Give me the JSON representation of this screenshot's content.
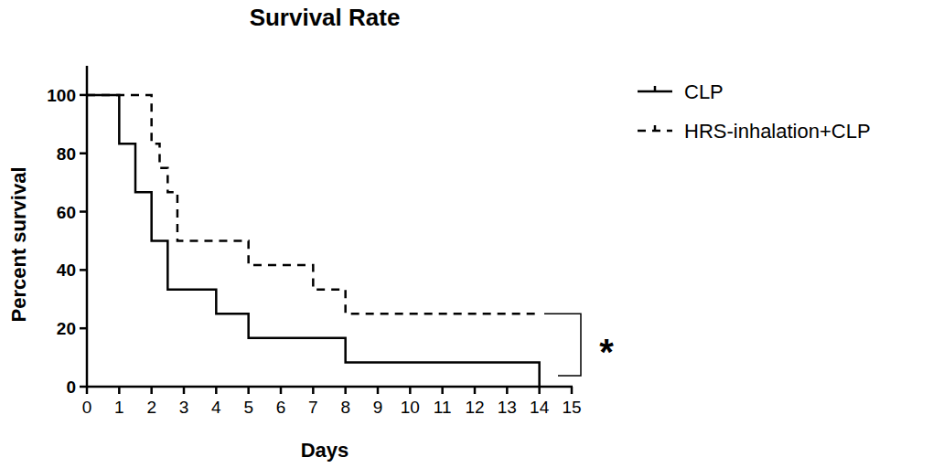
{
  "chart_data": {
    "type": "step",
    "title": "Survival Rate",
    "x_label": "Days",
    "y_label": "Percent survival",
    "xlim": [
      0,
      15
    ],
    "xticks": [
      0,
      1,
      2,
      3,
      4,
      5,
      6,
      7,
      8,
      9,
      10,
      11,
      12,
      13,
      14,
      15
    ],
    "ylim": [
      0,
      110
    ],
    "yticks": [
      0,
      20,
      40,
      60,
      80,
      100
    ],
    "grid": false,
    "legend": "right",
    "series": [
      {
        "name": "CLP",
        "color": "#000000",
        "line_style": "solid",
        "x": [
          0,
          1,
          1.5,
          2,
          2.5,
          4,
          5,
          8,
          14
        ],
        "values": [
          100,
          83.3,
          66.7,
          50,
          33.3,
          25,
          16.7,
          8.3,
          0
        ]
      },
      {
        "name": "HRS-inhalation+CLP",
        "color": "#000000",
        "line_style": "dashed",
        "x": [
          0,
          2,
          2.25,
          2.5,
          2.8,
          5,
          7,
          8,
          14
        ],
        "values": [
          100,
          83.3,
          75,
          66.7,
          50,
          41.7,
          33.3,
          25,
          25
        ]
      }
    ],
    "annotations": [
      {
        "text": "*"
      }
    ]
  }
}
